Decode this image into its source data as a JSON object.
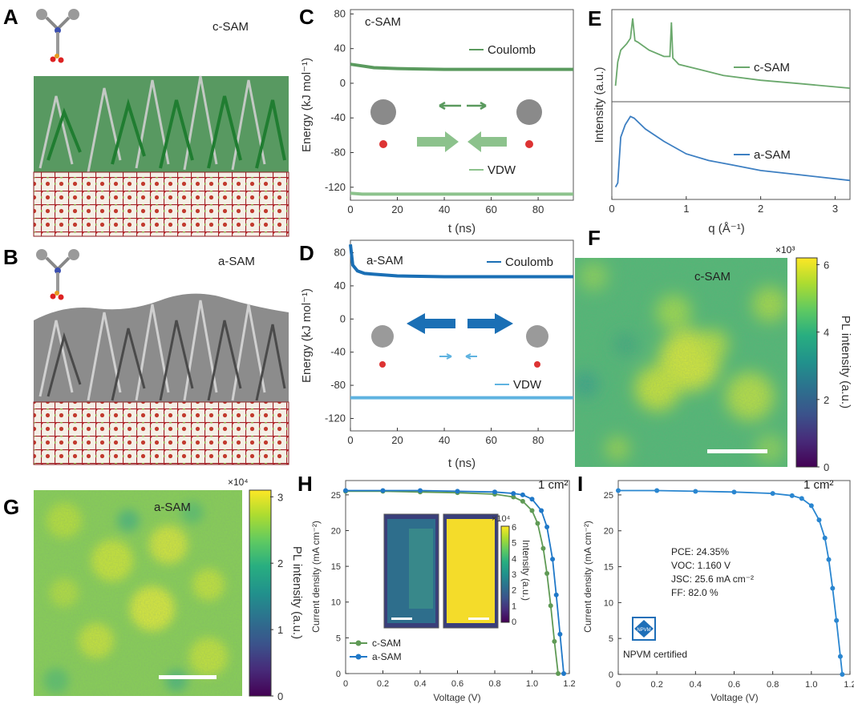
{
  "panels": {
    "A": "A",
    "B": "B",
    "C": "C",
    "D": "D",
    "E": "E",
    "F": "F",
    "G": "G",
    "H": "H",
    "I": "I"
  },
  "colors": {
    "coulomb_c": "#5a9a5e",
    "vdw_c": "#8cc28c",
    "coulomb_a": "#1a6fb5",
    "vdw_a": "#5fb3e0",
    "cSAM_e": "#6aa86c",
    "aSAM_e": "#3d7fc2",
    "h_c": "#5f9a55",
    "h_a": "#1f78c8",
    "i_line": "#2a86d0",
    "substrate": "#8b1e24",
    "green_mol": "#2f9e4a",
    "gray_mol": "#7a7a7a"
  },
  "chart_data": [
    {
      "panel": "A",
      "type": "other",
      "label": "c-SAM"
    },
    {
      "panel": "B",
      "type": "other",
      "label": "a-SAM"
    },
    {
      "panel": "C",
      "type": "line",
      "title": "c-SAM",
      "xlabel": "t (ns)",
      "ylabel": "Energy (kJ mol⁻¹)",
      "xlim": [
        0,
        95
      ],
      "ylim": [
        -135,
        85
      ],
      "xticks": [
        "0",
        "20",
        "40",
        "60",
        "80"
      ],
      "yticks": [
        "80",
        "40",
        "0",
        "-40",
        "-80",
        "-120"
      ],
      "series": [
        {
          "name": "Coulomb",
          "x": [
            0,
            5,
            10,
            20,
            40,
            60,
            80,
            95
          ],
          "values": [
            22,
            20,
            18,
            17,
            16,
            16,
            16,
            16
          ]
        },
        {
          "name": "VDW",
          "x": [
            0,
            5,
            20,
            40,
            60,
            80,
            95
          ],
          "values": [
            -127,
            -128,
            -128,
            -128,
            -128,
            -128,
            -128
          ]
        }
      ]
    },
    {
      "panel": "D",
      "type": "line",
      "title": "a-SAM",
      "xlabel": "t (ns)",
      "ylabel": "Energy (kJ mol⁻¹)",
      "xlim": [
        0,
        95
      ],
      "ylim": [
        -135,
        95
      ],
      "xticks": [
        "0",
        "20",
        "40",
        "60",
        "80"
      ],
      "yticks": [
        "80",
        "40",
        "0",
        "-40",
        "-80",
        "-120"
      ],
      "series": [
        {
          "name": "Coulomb",
          "x": [
            0,
            1,
            3,
            6,
            10,
            20,
            40,
            60,
            80,
            95
          ],
          "values": [
            90,
            65,
            58,
            55,
            54,
            52,
            51,
            51,
            51,
            51
          ]
        },
        {
          "name": "VDW",
          "x": [
            0,
            5,
            20,
            40,
            60,
            80,
            95
          ],
          "values": [
            -95,
            -95,
            -95,
            -95,
            -95,
            -95,
            -95
          ]
        }
      ]
    },
    {
      "panel": "E",
      "type": "line",
      "xlabel": "q (Å⁻¹)",
      "ylabel": "Intensity (a.u.)",
      "xlim": [
        0,
        3.2
      ],
      "xticks": [
        "0",
        "1",
        "2",
        "3"
      ],
      "series": [
        {
          "name": "c-SAM",
          "x": [
            0.05,
            0.08,
            0.12,
            0.2,
            0.25,
            0.28,
            0.31,
            0.35,
            0.5,
            0.7,
            0.78,
            0.8,
            0.82,
            0.9,
            1.2,
            1.5,
            2.0,
            2.5,
            3.2
          ],
          "values": [
            0.15,
            0.45,
            0.6,
            0.68,
            0.75,
            1.0,
            0.72,
            0.7,
            0.6,
            0.52,
            0.52,
            0.95,
            0.5,
            0.42,
            0.35,
            0.28,
            0.22,
            0.18,
            0.12
          ]
        },
        {
          "name": "a-SAM",
          "x": [
            0.05,
            0.08,
            0.12,
            0.18,
            0.25,
            0.3,
            0.45,
            0.7,
            1.0,
            1.3,
            1.6,
            2.0,
            2.5,
            3.2
          ],
          "values": [
            0.1,
            0.15,
            0.7,
            0.85,
            0.95,
            0.93,
            0.8,
            0.65,
            0.5,
            0.42,
            0.37,
            0.3,
            0.25,
            0.18
          ]
        }
      ]
    },
    {
      "panel": "F",
      "type": "heatmap",
      "label": "c-SAM",
      "colorbar": {
        "label": "PL intensity (a.u.)",
        "multiplier": "×10³",
        "ticks": [
          "0",
          "2",
          "4",
          "6"
        ],
        "range": [
          0,
          6.2
        ]
      }
    },
    {
      "panel": "G",
      "type": "heatmap",
      "label": "a-SAM",
      "colorbar": {
        "label": "PL intensity (a.u.)",
        "multiplier": "×10⁴",
        "ticks": [
          "0",
          "1",
          "2",
          "3"
        ],
        "range": [
          0,
          3.1
        ]
      }
    },
    {
      "panel": "H",
      "type": "line",
      "annotation": "1 cm²",
      "xlabel": "Voltage (V)",
      "ylabel": "Current density (mA cm⁻²)",
      "xlim": [
        0,
        1.2
      ],
      "ylim": [
        0,
        27
      ],
      "xticks": [
        "0",
        "0.2",
        "0.4",
        "0.6",
        "0.8",
        "1.0",
        "1.2"
      ],
      "yticks": [
        "0",
        "5",
        "10",
        "15",
        "20",
        "25"
      ],
      "series": [
        {
          "name": "c-SAM",
          "x": [
            0,
            0.2,
            0.4,
            0.6,
            0.8,
            0.9,
            0.95,
            1.0,
            1.03,
            1.06,
            1.08,
            1.1,
            1.12,
            1.14
          ],
          "values": [
            25.5,
            25.5,
            25.4,
            25.3,
            25.1,
            24.7,
            24.1,
            22.8,
            21.0,
            17.5,
            14.0,
            9.5,
            4.5,
            0
          ]
        },
        {
          "name": "a-SAM",
          "x": [
            0,
            0.2,
            0.4,
            0.6,
            0.8,
            0.9,
            0.95,
            1.0,
            1.05,
            1.08,
            1.11,
            1.13,
            1.15,
            1.17
          ],
          "values": [
            25.6,
            25.6,
            25.6,
            25.5,
            25.4,
            25.2,
            25.0,
            24.4,
            22.8,
            20.5,
            16.0,
            11.0,
            5.5,
            0
          ]
        }
      ],
      "inset": {
        "colorbar_label": "Intensity (a.u.)",
        "multiplier": "×10⁴",
        "ticks": [
          "0",
          "1",
          "2",
          "3",
          "4",
          "5",
          "6"
        ]
      }
    },
    {
      "panel": "I",
      "type": "line",
      "annotation": "1 cm²",
      "xlabel": "Voltage (V)",
      "ylabel": "Current density (mA cm⁻²)",
      "xlim": [
        0,
        1.2
      ],
      "ylim": [
        0,
        27
      ],
      "xticks": [
        "0",
        "0.2",
        "0.4",
        "0.6",
        "0.8",
        "1.0",
        "1.2"
      ],
      "yticks": [
        "0",
        "5",
        "10",
        "15",
        "20",
        "25"
      ],
      "series": [
        {
          "name": "certified",
          "x": [
            0,
            0.2,
            0.4,
            0.6,
            0.8,
            0.9,
            0.95,
            1.0,
            1.04,
            1.07,
            1.09,
            1.11,
            1.13,
            1.15,
            1.16
          ],
          "values": [
            25.6,
            25.6,
            25.5,
            25.4,
            25.2,
            24.9,
            24.5,
            23.5,
            21.5,
            19.0,
            16.0,
            12.0,
            7.5,
            2.5,
            0
          ]
        }
      ],
      "metrics": [
        "PCE: 24.35%",
        "VOC: 1.160 V",
        "JSC: 25.6 mA cm⁻²",
        "FF: 82.0 %"
      ],
      "badge": {
        "logo": "NPVM",
        "text": "NPVM certified"
      }
    }
  ]
}
